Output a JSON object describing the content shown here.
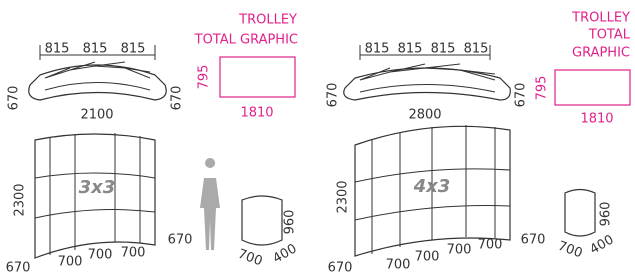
{
  "left": {
    "top_widths": [
      "815",
      "815",
      "815"
    ],
    "plan_depth_left": "670",
    "plan_depth_right": "670",
    "plan_width": "2100",
    "graphic_title": [
      "TROLLEY",
      "TOTAL GRAPHIC"
    ],
    "graphic_height": "795",
    "graphic_width": "1810",
    "height": "2300",
    "model": "3x3",
    "bottom": [
      "670",
      "700",
      "700",
      "700",
      "670"
    ],
    "trolley": {
      "height": "960",
      "width": "700",
      "depth": "400"
    }
  },
  "right": {
    "top_widths": [
      "815",
      "815",
      "815",
      "815"
    ],
    "plan_depth_left": "670",
    "plan_depth_right": "670",
    "plan_width": "2800",
    "graphic_title": [
      "TROLLEY",
      "TOTAL",
      "GRAPHIC"
    ],
    "graphic_height": "795",
    "graphic_width": "1810",
    "height": "2300",
    "model": "4x3",
    "bottom": [
      "670",
      "700",
      "700",
      "700",
      "700",
      "670"
    ],
    "trolley": {
      "height": "960",
      "width": "700",
      "depth": "400"
    }
  }
}
